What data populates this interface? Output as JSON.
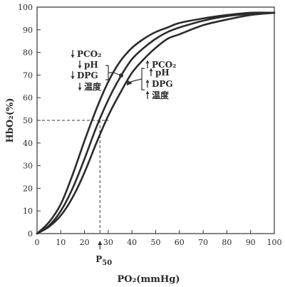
{
  "chart_data": {
    "type": "line",
    "xlabel": "PO₂(mmHg)",
    "ylabel": "HbO₂(%)",
    "xlim": [
      0,
      100
    ],
    "ylim": [
      0,
      100
    ],
    "x_ticks": [
      "0",
      "10",
      "20",
      "30",
      "40",
      "50",
      "60",
      "70",
      "80",
      "90",
      "100"
    ],
    "y_ticks": [
      "0",
      "10",
      "20",
      "30",
      "40",
      "50",
      "60",
      "70",
      "80",
      "90",
      "100"
    ],
    "grid": false,
    "series": [
      {
        "x": [
          0,
          5,
          10,
          15,
          20,
          25,
          30,
          35,
          40,
          45,
          50,
          55,
          60,
          70,
          80,
          90,
          100
        ],
        "y": [
          0,
          5,
          13,
          26,
          41,
          55,
          67,
          76,
          82,
          86,
          89,
          91,
          93,
          95,
          96.5,
          97.5,
          97.5
        ]
      },
      {
        "x": [
          0,
          5,
          10,
          15,
          20,
          25,
          30,
          35,
          40,
          45,
          50,
          55,
          60,
          70,
          80,
          90,
          100
        ],
        "y": [
          0,
          3.5,
          10,
          20,
          33,
          47,
          59,
          69,
          77,
          82,
          86,
          89,
          91,
          94,
          96,
          97,
          97.5
        ]
      },
      {
        "x": [
          0,
          5,
          10,
          15,
          20,
          25,
          30,
          35,
          40,
          45,
          50,
          55,
          60,
          70,
          80,
          90,
          100
        ],
        "y": [
          0,
          3,
          8,
          16,
          27,
          40,
          52,
          62,
          71,
          77,
          82,
          86,
          88,
          92,
          94.5,
          96.5,
          97.5
        ]
      }
    ],
    "p50": {
      "x": 26.5,
      "y": 50,
      "label_main": "P",
      "label_sub": "50"
    },
    "annotations": {
      "left_group": {
        "items": [
          "PCO₂",
          "pH",
          "DPG",
          "温度"
        ],
        "arrow": "down"
      },
      "right_group": {
        "items": [
          "PCO₂",
          "pH",
          "DPG",
          "温度"
        ],
        "arrow": "up"
      }
    }
  }
}
